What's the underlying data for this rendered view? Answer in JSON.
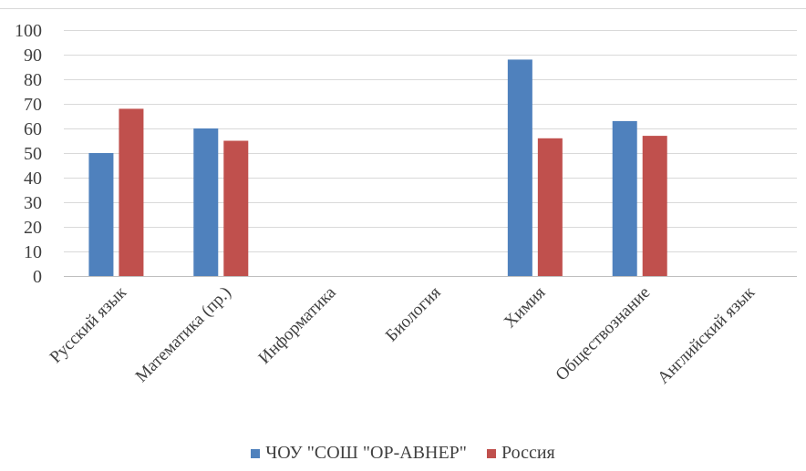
{
  "chart_data": {
    "type": "bar",
    "categories": [
      "Русский язык",
      "Математика (пр.)",
      "Информатика",
      "Биология",
      "Химия",
      "Обществознание",
      "Английский язык"
    ],
    "series": [
      {
        "name": "ЧОУ \"СОШ \"ОР-АВНЕР\"",
        "color": "#4f81bd",
        "values": [
          50,
          60,
          null,
          null,
          88,
          63,
          null
        ]
      },
      {
        "name": "Россия",
        "color": "#c0504d",
        "values": [
          68,
          55,
          null,
          null,
          56,
          57,
          null
        ]
      }
    ],
    "yticks": [
      "0",
      "10",
      "20",
      "30",
      "40",
      "50",
      "60",
      "70",
      "80",
      "90",
      "100"
    ],
    "ylim": [
      0,
      100
    ],
    "grid": true,
    "legend": "bottom"
  }
}
